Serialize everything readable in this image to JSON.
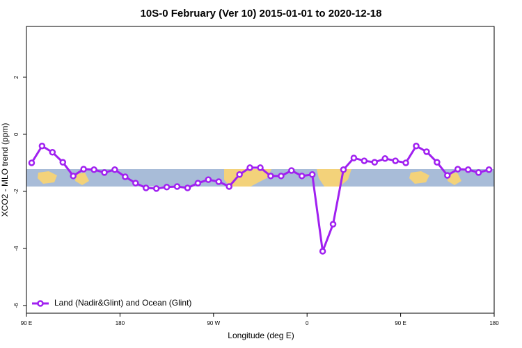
{
  "chart_data": {
    "type": "line",
    "title": "10S-0 February (Ver 10)   2015-01-01 to 2020-12-18",
    "x_label": "Longitude (deg E)",
    "y_label": "XCO2 - MLO trend (ppm)",
    "x": [
      95,
      105,
      115,
      125,
      135,
      145,
      155,
      165,
      175,
      185,
      195,
      205,
      215,
      225,
      235,
      245,
      255,
      265,
      275,
      285,
      295,
      305,
      315,
      325,
      335,
      345,
      355,
      365,
      375,
      385,
      395,
      405,
      415,
      425,
      435,
      445,
      455,
      465,
      475,
      485,
      495,
      505,
      515,
      525,
      535
    ],
    "series": [
      {
        "name": "Land (Nadir&Glint) and Ocean (Glint)",
        "color": "#a020f0",
        "values": [
          -1.0,
          -0.41,
          -0.63,
          -0.98,
          -1.46,
          -1.22,
          -1.24,
          -1.34,
          -1.24,
          -1.49,
          -1.71,
          -1.88,
          -1.9,
          -1.85,
          -1.83,
          -1.88,
          -1.71,
          -1.59,
          -1.66,
          -1.83,
          -1.41,
          -1.17,
          -1.17,
          -1.46,
          -1.46,
          -1.27,
          -1.46,
          -1.41,
          -4.1,
          -3.15,
          -1.24,
          -0.83,
          -0.93,
          -0.98,
          -0.85,
          -0.93,
          -1.0,
          -0.41,
          -0.61,
          -0.98,
          -1.44,
          -1.22,
          -1.24,
          -1.34,
          -1.24
        ]
      }
    ],
    "xlim": [
      90,
      540
    ],
    "xticks": [
      {
        "value": 90,
        "label": "90 E"
      },
      180,
      {
        "value": 270,
        "label": "90 W"
      },
      {
        "value": 360,
        "label": "0"
      },
      {
        "value": 450,
        "label": "90 E"
      },
      {
        "value": 540,
        "label": "180"
      }
    ],
    "ylim": [
      -6.27,
      3.78
    ],
    "yticks": [
      -6,
      -4,
      -2,
      0,
      2
    ],
    "legend": "bottom-left"
  }
}
